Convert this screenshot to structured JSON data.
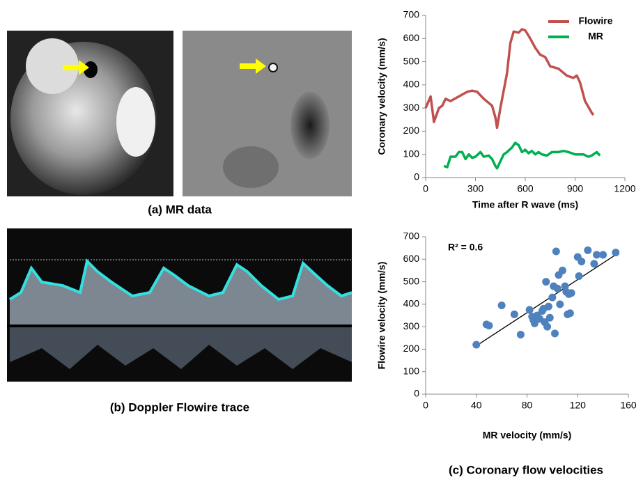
{
  "figure": {
    "captions": {
      "a": "(a) MR data",
      "b": "(b) Doppler Flowire trace",
      "c": "(c) Coronary flow velocities"
    }
  },
  "chart_data": [
    {
      "type": "line",
      "x_label": "Time after R wave (ms)",
      "y_label": "Coronary velocity (mm/s)",
      "xlim": [
        0,
        1200
      ],
      "xticks": [
        0,
        300,
        600,
        900,
        1200
      ],
      "ylim": [
        0,
        700
      ],
      "yticks": [
        0,
        100,
        200,
        300,
        400,
        500,
        600,
        700
      ],
      "legend": "top-right",
      "series": [
        {
          "name": "Flowire",
          "color": "#c0504d",
          "x": [
            0,
            30,
            50,
            80,
            100,
            120,
            150,
            200,
            250,
            280,
            310,
            350,
            400,
            420,
            430,
            450,
            490,
            510,
            530,
            560,
            580,
            600,
            630,
            660,
            690,
            720,
            750,
            800,
            850,
            890,
            910,
            930,
            960,
            1000,
            1010
          ],
          "values": [
            300,
            350,
            240,
            300,
            310,
            340,
            330,
            350,
            370,
            375,
            370,
            340,
            310,
            260,
            215,
            300,
            450,
            580,
            630,
            625,
            640,
            635,
            600,
            560,
            530,
            520,
            480,
            470,
            440,
            430,
            440,
            410,
            330,
            280,
            270
          ]
        },
        {
          "name": "MR",
          "color": "#00b050",
          "x": [
            110,
            130,
            150,
            180,
            200,
            220,
            240,
            260,
            280,
            300,
            330,
            350,
            380,
            400,
            420,
            430,
            450,
            470,
            490,
            520,
            540,
            560,
            580,
            600,
            620,
            640,
            660,
            680,
            700,
            730,
            760,
            800,
            830,
            860,
            900,
            950,
            980,
            1000,
            1030,
            1050
          ],
          "values": [
            50,
            45,
            90,
            90,
            110,
            110,
            80,
            100,
            85,
            90,
            110,
            90,
            95,
            80,
            50,
            40,
            70,
            100,
            110,
            130,
            150,
            140,
            110,
            120,
            105,
            115,
            100,
            110,
            100,
            95,
            110,
            110,
            115,
            110,
            100,
            100,
            90,
            95,
            110,
            95
          ]
        }
      ]
    },
    {
      "type": "scatter",
      "x_label": "MR velocity (mm/s)",
      "y_label": "Flowire velocity (mm/s)",
      "annotation": "R² = 0.6",
      "color": "#4f81bd",
      "xlim": [
        0,
        160
      ],
      "xticks": [
        0,
        40,
        80,
        120,
        160
      ],
      "ylim": [
        0,
        700
      ],
      "yticks": [
        0,
        100,
        200,
        300,
        400,
        500,
        600,
        700
      ],
      "x": [
        40,
        48,
        50,
        60,
        70,
        75,
        82,
        84,
        85,
        86,
        88,
        90,
        92,
        93,
        94,
        95,
        96,
        97,
        98,
        100,
        101,
        102,
        103,
        104,
        105,
        106,
        108,
        110,
        111,
        112,
        113,
        114,
        115,
        120,
        121,
        123,
        128,
        133,
        135,
        140,
        150
      ],
      "values": [
        220,
        310,
        305,
        395,
        355,
        265,
        375,
        345,
        330,
        315,
        350,
        335,
        370,
        380,
        320,
        500,
        300,
        390,
        340,
        430,
        480,
        270,
        635,
        470,
        530,
        400,
        550,
        480,
        455,
        355,
        445,
        360,
        450,
        610,
        525,
        590,
        640,
        580,
        620,
        620,
        630
      ],
      "trendline": {
        "x": [
          40,
          150
        ],
        "y": [
          215,
          620
        ]
      }
    }
  ]
}
